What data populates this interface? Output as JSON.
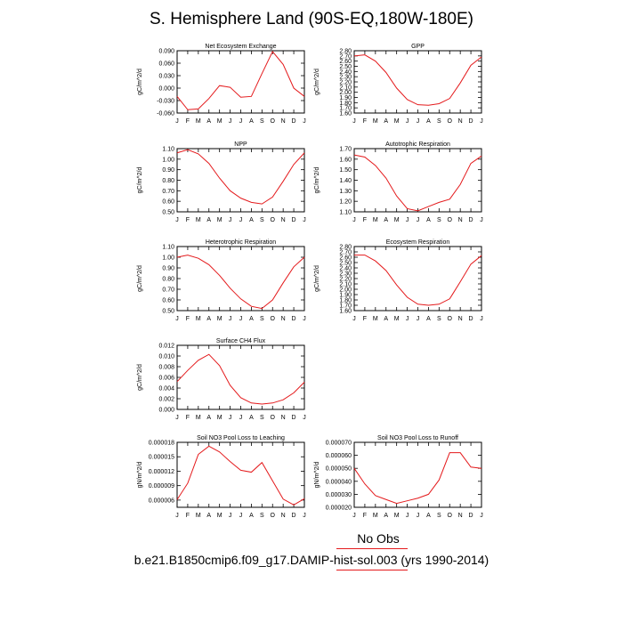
{
  "figure": {
    "title": "S. Hemisphere Land (90S-EQ,180W-180E)",
    "legend_label": "No Obs",
    "caption": "b.e21.B1850cmip6.f09_g17.DAMIP-hist-sol.003 (yrs 1990-2014)",
    "series_color": "#e41a1c"
  },
  "chart_data": [
    {
      "type": "line",
      "title": "Net Ecosystem Exchange",
      "ylabel": "gC/m^2/d",
      "x": [
        "J",
        "F",
        "M",
        "A",
        "M",
        "J",
        "J",
        "A",
        "S",
        "O",
        "N",
        "D",
        "J"
      ],
      "values": [
        -0.02,
        -0.052,
        -0.05,
        -0.025,
        0.006,
        0.002,
        -0.022,
        -0.02,
        0.035,
        0.088,
        0.057,
        0.0,
        -0.02
      ],
      "ylim": [
        -0.06,
        0.09
      ],
      "yticks": [
        "-0.060",
        "-0.030",
        "0.000",
        "0.030",
        "0.060",
        "0.090"
      ]
    },
    {
      "type": "line",
      "title": "GPP",
      "ylabel": "gC/m^2/d",
      "x": [
        "J",
        "F",
        "M",
        "A",
        "M",
        "J",
        "J",
        "A",
        "S",
        "O",
        "N",
        "D",
        "J"
      ],
      "values": [
        2.7,
        2.72,
        2.6,
        2.38,
        2.08,
        1.86,
        1.76,
        1.75,
        1.78,
        1.88,
        2.18,
        2.52,
        2.68
      ],
      "ylim": [
        1.6,
        2.8
      ],
      "yticks": [
        "1.60",
        "1.70",
        "1.80",
        "1.90",
        "2.00",
        "2.10",
        "2.20",
        "2.30",
        "2.40",
        "2.50",
        "2.60",
        "2.70",
        "2.80"
      ]
    },
    {
      "type": "line",
      "title": "NPP",
      "ylabel": "gC/m^2/d",
      "x": [
        "J",
        "F",
        "M",
        "A",
        "M",
        "J",
        "J",
        "A",
        "S",
        "O",
        "N",
        "D",
        "J"
      ],
      "values": [
        1.06,
        1.09,
        1.05,
        0.96,
        0.82,
        0.7,
        0.63,
        0.59,
        0.575,
        0.64,
        0.79,
        0.95,
        1.06
      ],
      "ylim": [
        0.5,
        1.1
      ],
      "yticks": [
        "0.50",
        "0.60",
        "0.70",
        "0.80",
        "0.90",
        "1.00",
        "1.10"
      ]
    },
    {
      "type": "line",
      "title": "Autotrophic Respiration",
      "ylabel": "gC/m^2/d",
      "x": [
        "J",
        "F",
        "M",
        "A",
        "M",
        "J",
        "J",
        "A",
        "S",
        "O",
        "N",
        "D",
        "J"
      ],
      "values": [
        1.64,
        1.62,
        1.54,
        1.42,
        1.25,
        1.13,
        1.11,
        1.15,
        1.19,
        1.22,
        1.36,
        1.56,
        1.63
      ],
      "ylim": [
        1.1,
        1.7
      ],
      "yticks": [
        "1.10",
        "1.20",
        "1.30",
        "1.40",
        "1.50",
        "1.60",
        "1.70"
      ]
    },
    {
      "type": "line",
      "title": "Heterotrophic Respiration",
      "ylabel": "gC/m^2/d",
      "x": [
        "J",
        "F",
        "M",
        "A",
        "M",
        "J",
        "J",
        "A",
        "S",
        "O",
        "N",
        "D",
        "J"
      ],
      "values": [
        1.0,
        1.02,
        0.99,
        0.93,
        0.83,
        0.71,
        0.61,
        0.54,
        0.52,
        0.6,
        0.76,
        0.91,
        1.0
      ],
      "ylim": [
        0.5,
        1.1
      ],
      "yticks": [
        "0.50",
        "0.60",
        "0.70",
        "0.80",
        "0.90",
        "1.00",
        "1.10"
      ]
    },
    {
      "type": "line",
      "title": "Ecosystem Respiration",
      "ylabel": "gC/m^2/d",
      "x": [
        "J",
        "F",
        "M",
        "A",
        "M",
        "J",
        "J",
        "A",
        "S",
        "O",
        "N",
        "D",
        "J"
      ],
      "values": [
        2.64,
        2.64,
        2.53,
        2.35,
        2.08,
        1.85,
        1.72,
        1.7,
        1.72,
        1.82,
        2.14,
        2.47,
        2.63
      ],
      "ylim": [
        1.6,
        2.8
      ],
      "yticks": [
        "1.60",
        "1.70",
        "1.80",
        "1.90",
        "2.00",
        "2.10",
        "2.20",
        "2.30",
        "2.40",
        "2.50",
        "2.60",
        "2.70",
        "2.80"
      ]
    },
    {
      "type": "line",
      "title": "Surface CH4 Flux",
      "ylabel": "gC/m^2/d",
      "x": [
        "J",
        "F",
        "M",
        "A",
        "M",
        "J",
        "J",
        "A",
        "S",
        "O",
        "N",
        "D",
        "J"
      ],
      "values": [
        0.0052,
        0.0073,
        0.0092,
        0.0103,
        0.0082,
        0.0045,
        0.0022,
        0.0012,
        0.001,
        0.0012,
        0.0018,
        0.0031,
        0.0051
      ],
      "ylim": [
        0.0,
        0.012
      ],
      "yticks": [
        "0.000",
        "0.002",
        "0.004",
        "0.006",
        "0.008",
        "0.010",
        "0.012"
      ]
    },
    {
      "type": "line",
      "title": "Soil NO3 Pool Loss to Leaching",
      "ylabel": "gN/m^2/d",
      "x": [
        "J",
        "F",
        "M",
        "A",
        "M",
        "J",
        "J",
        "A",
        "S",
        "O",
        "N",
        "D",
        "J"
      ],
      "values": [
        6.1e-06,
        9.5e-06,
        1.55e-05,
        1.72e-05,
        1.6e-05,
        1.4e-05,
        1.22e-05,
        1.18e-05,
        1.38e-05,
        1e-05,
        6.2e-06,
        5e-06,
        6.3e-06
      ],
      "ylim": [
        4.5e-06,
        1.8e-05
      ],
      "yticks": [
        "0.000006",
        "0.000009",
        "0.000012",
        "0.000015",
        "0.000018"
      ]
    },
    {
      "type": "line",
      "title": "Soil NO3 Pool Loss to Runoff",
      "ylabel": "gN/m^2/d",
      "x": [
        "J",
        "F",
        "M",
        "A",
        "M",
        "J",
        "J",
        "A",
        "S",
        "O",
        "N",
        "D",
        "J"
      ],
      "values": [
        5e-05,
        3.8e-05,
        2.9e-05,
        2.6e-05,
        2.3e-05,
        2.5e-05,
        2.7e-05,
        3e-05,
        4.1e-05,
        6.2e-05,
        6.2e-05,
        5.1e-05,
        5e-05
      ],
      "ylim": [
        2e-05,
        7e-05
      ],
      "yticks": [
        "0.000020",
        "0.000030",
        "0.000040",
        "0.000050",
        "0.000060",
        "0.000070"
      ]
    }
  ]
}
